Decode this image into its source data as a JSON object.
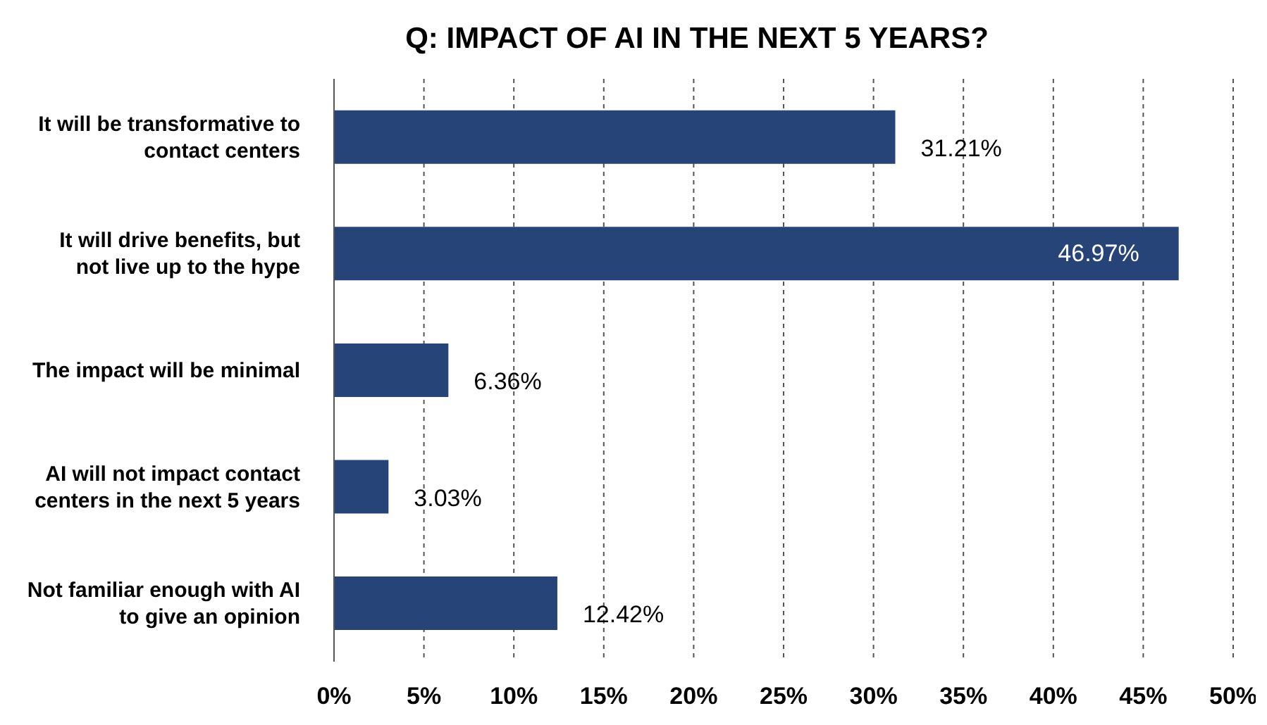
{
  "chart_data": {
    "type": "bar",
    "orientation": "horizontal",
    "title": "Q: IMPACT OF AI IN THE NEXT 5 YEARS?",
    "categories": [
      "It will be transformative to contact centers",
      "It will drive benefits, but not live up to the hype",
      "The impact will be minimal",
      "AI will not impact contact centers in the next 5 years",
      "Not familiar enough with AI to give an opinion"
    ],
    "values": [
      31.21,
      46.97,
      6.36,
      3.03,
      12.42
    ],
    "value_labels": [
      "31.21%",
      "46.97%",
      "6.36%",
      "3.03%",
      "12.42%"
    ],
    "color": "#264478",
    "xlim": [
      0,
      50
    ],
    "xticks": [
      {
        "value": 0,
        "label": "0%"
      },
      {
        "value": 5,
        "label": "5%"
      },
      {
        "value": 10,
        "label": "10%"
      },
      {
        "value": 15,
        "label": "15%"
      },
      {
        "value": 20,
        "label": "20%"
      },
      {
        "value": 25,
        "label": "25%"
      },
      {
        "value": 30,
        "label": "30%"
      },
      {
        "value": 35,
        "label": "35%"
      },
      {
        "value": 40,
        "label": "40%"
      },
      {
        "value": 45,
        "label": "45%"
      },
      {
        "value": 50,
        "label": "50%"
      }
    ],
    "grid": "x"
  }
}
